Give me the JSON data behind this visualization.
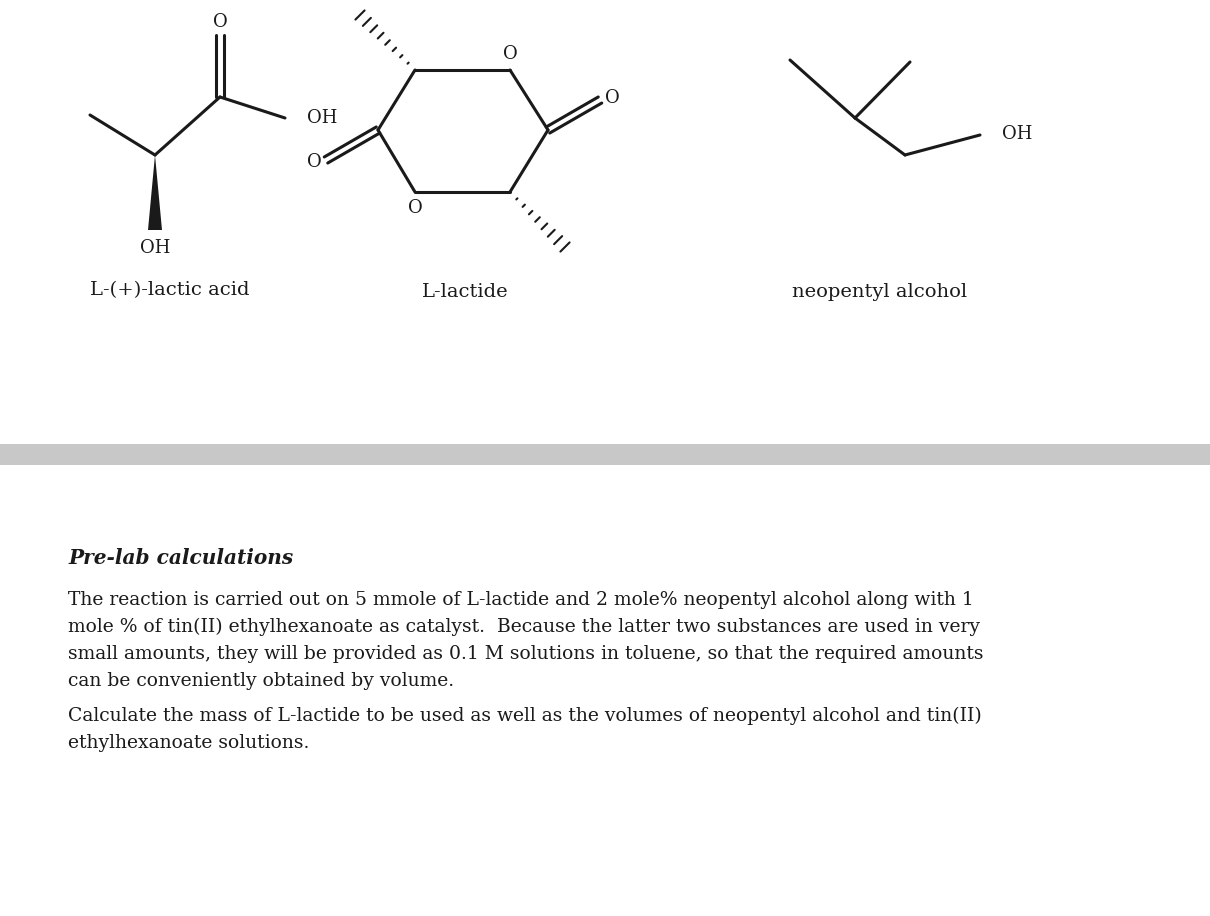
{
  "background_color": "#ffffff",
  "divider_color": "#c8c8c8",
  "text_color": "#1a1a1a",
  "label1": "L-(+)-lactic acid",
  "label2": "L-lactide",
  "label3": "neopentyl alcohol",
  "prelab_title": "Pre-lab calculations",
  "paragraph1": "The reaction is carried out on 5 mmole of L-lactide and 2 mole% neopentyl alcohol along with 1\nmole % of tin(II) ethylhexanoate as catalyst.  Because the latter two substances are used in very\nsmall amounts, they will be provided as 0.1 M solutions in toluene, so that the required amounts\ncan be conveniently obtained by volume.",
  "paragraph2": "Calculate the mass of L-lactide to be used as well as the volumes of neopentyl alcohol and tin(II)\nethylhexanoate solutions.",
  "fig_width": 12.1,
  "fig_height": 9.16,
  "dpi": 100
}
